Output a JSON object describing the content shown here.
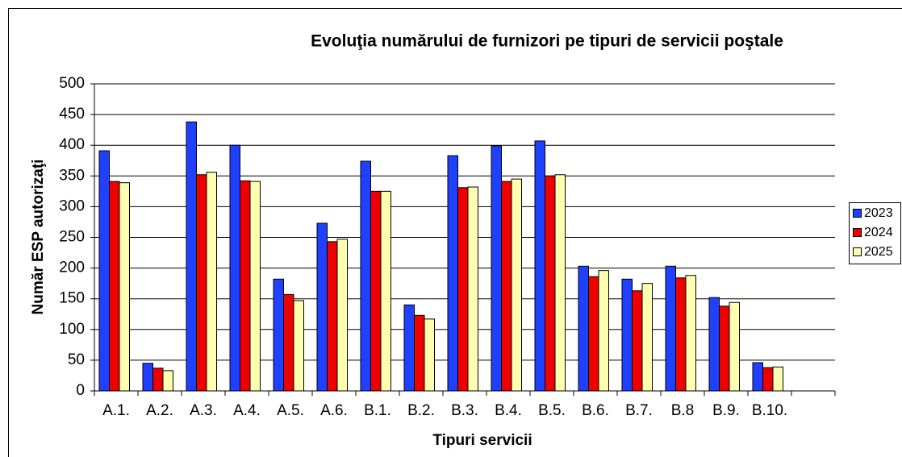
{
  "chart_data": {
    "type": "bar",
    "title": "Evoluţia numărului de furnizori pe tipuri de servicii poştale",
    "x_label": "Tipuri servicii",
    "y_label": "Număr ESP autorizaţi",
    "categories": [
      "A.1.",
      "A.2.",
      "A.3.",
      "A.4.",
      "A.5.",
      "A.6.",
      "B.1.",
      "B.2.",
      "B.3.",
      "B.4.",
      "B.5.",
      "B.6.",
      "B.7.",
      "B.8",
      "B.9.",
      "B.10.",
      null
    ],
    "series": [
      {
        "name": "2023",
        "color": "#2040ff",
        "values": [
          391,
          45,
          438,
          400,
          182,
          273,
          374,
          140,
          383,
          399,
          407,
          203,
          182,
          203,
          152,
          46,
          null
        ]
      },
      {
        "name": "2024",
        "color": "#ee0000",
        "values": [
          341,
          37,
          352,
          342,
          157,
          243,
          325,
          123,
          331,
          341,
          350,
          186,
          163,
          184,
          138,
          38,
          null
        ]
      },
      {
        "name": "2025",
        "color": "#ffffb0",
        "values": [
          339,
          33,
          356,
          341,
          147,
          247,
          325,
          117,
          332,
          345,
          352,
          196,
          175,
          188,
          144,
          39,
          null
        ]
      }
    ],
    "ylim": [
      0,
      500
    ],
    "yticks": [
      0,
      50,
      100,
      150,
      200,
      250,
      300,
      350,
      400,
      450,
      500
    ],
    "grid": true,
    "legend": "right"
  }
}
